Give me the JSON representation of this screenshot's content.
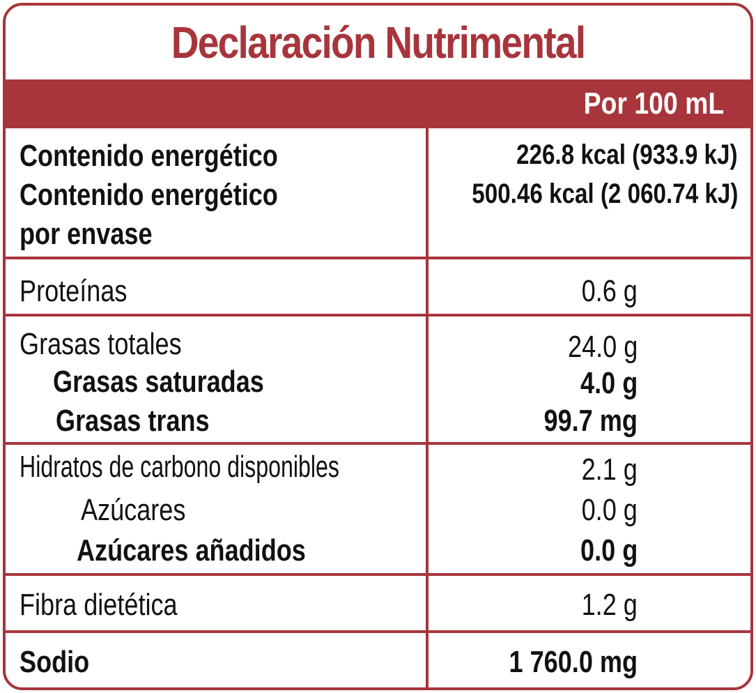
{
  "title": "Declaración Nutrimental",
  "per_header": "Por 100 mL",
  "energy": {
    "label1": "Contenido energético",
    "label2": "Contenido energético",
    "label3": "por envase",
    "value1": "226.8 kcal (933.9 kJ)",
    "value2": "500.46 kcal (2 060.74 kJ)"
  },
  "proteins": {
    "label": "Proteínas",
    "value": "0.6 g"
  },
  "fats": {
    "label": "Grasas totales",
    "value": "24.0 g",
    "saturated_label": "Grasas saturadas",
    "saturated_value": "4.0 g",
    "trans_label": "Grasas trans",
    "trans_value": "99.7 mg"
  },
  "carbs": {
    "label": "Hidratos de carbono disponibles",
    "value": "2.1 g",
    "sugars_label": "Azúcares",
    "sugars_value": "0.0 g",
    "added_label": "Azúcares añadidos",
    "added_value": "0.0 g"
  },
  "fiber": {
    "label": "Fibra dietética",
    "value": "1.2 g"
  },
  "sodium": {
    "label": "Sodio",
    "value": "1 760.0 mg"
  },
  "colors": {
    "accent": "#a8353c",
    "text": "#111111",
    "background": "#ffffff"
  }
}
